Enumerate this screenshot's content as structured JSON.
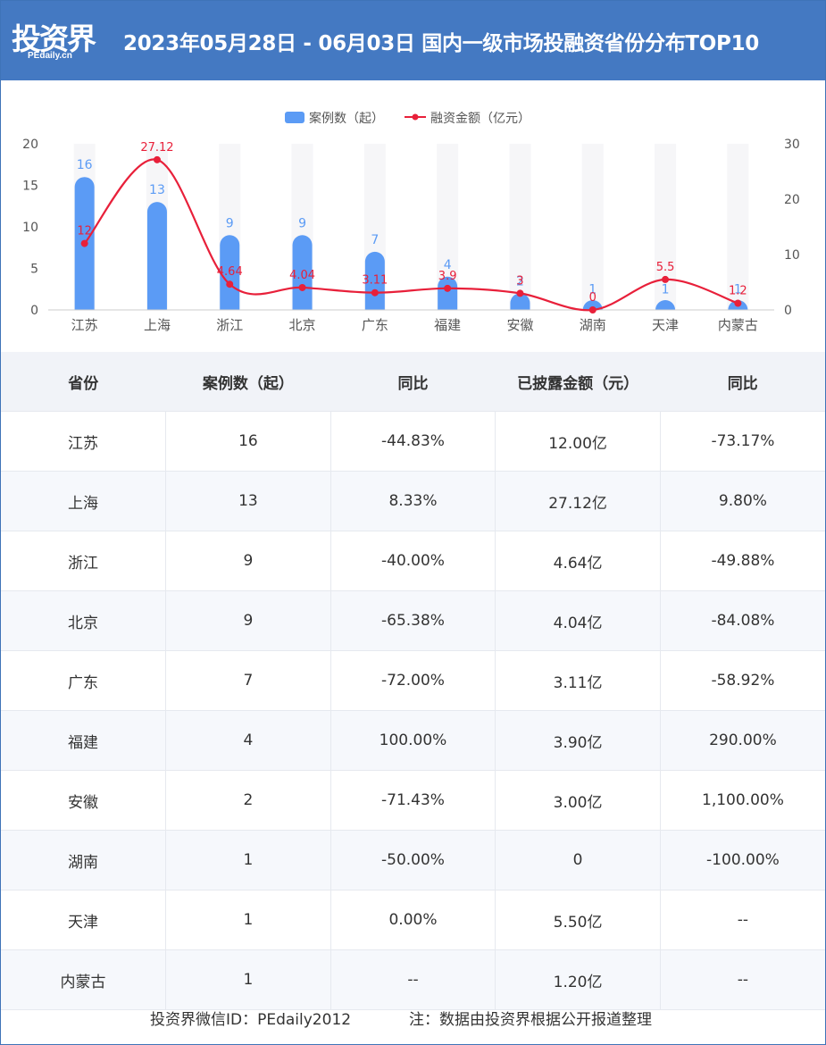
{
  "header": {
    "logo_text": "投资界",
    "logo_sub": "PEdaily.cn",
    "title": "2023年05月28日 - 06月03日 国内一级市场投融资省份分布TOP10"
  },
  "colors": {
    "header_bg": "#4479c2",
    "bar": "#5b9bf5",
    "line": "#e8203a"
  },
  "chart_data": {
    "type": "bar",
    "categories": [
      "江苏",
      "上海",
      "浙江",
      "北京",
      "广东",
      "福建",
      "安徽",
      "湖南",
      "天津",
      "内蒙古"
    ],
    "series": [
      {
        "name": "案例数（起）",
        "type": "bar",
        "axis": "left",
        "values": [
          16,
          13,
          9,
          9,
          7,
          4,
          2,
          1,
          1,
          1
        ],
        "labels": [
          "16",
          "13",
          "9",
          "9",
          "7",
          "4",
          "2",
          "1",
          "1",
          "1"
        ]
      },
      {
        "name": "融资金额（亿元）",
        "type": "line",
        "axis": "right",
        "values": [
          12,
          27.12,
          4.64,
          4.04,
          3.11,
          3.9,
          3,
          0,
          5.5,
          1.2
        ],
        "labels": [
          "12",
          "27.12",
          "4.64",
          "4.04",
          "3.11",
          "3.9",
          "3",
          "0",
          "5.5",
          "1.2"
        ]
      }
    ],
    "y_left": {
      "range": [
        0,
        20
      ],
      "ticks": [
        "0",
        "5",
        "10",
        "15",
        "20"
      ]
    },
    "y_right": {
      "range": [
        0,
        30
      ],
      "ticks": [
        "0",
        "10",
        "20",
        "30"
      ]
    },
    "legend_position": "top-center",
    "grid": false
  },
  "table": {
    "headers": [
      "省份",
      "案例数（起）",
      "同比",
      "已披露金额（元）",
      "同比"
    ],
    "rows": [
      [
        "江苏",
        "16",
        "-44.83%",
        "12.00亿",
        "-73.17%"
      ],
      [
        "上海",
        "13",
        "8.33%",
        "27.12亿",
        "9.80%"
      ],
      [
        "浙江",
        "9",
        "-40.00%",
        "4.64亿",
        "-49.88%"
      ],
      [
        "北京",
        "9",
        "-65.38%",
        "4.04亿",
        "-84.08%"
      ],
      [
        "广东",
        "7",
        "-72.00%",
        "3.11亿",
        "-58.92%"
      ],
      [
        "福建",
        "4",
        "100.00%",
        "3.90亿",
        "290.00%"
      ],
      [
        "安徽",
        "2",
        "-71.43%",
        "3.00亿",
        "1,100.00%"
      ],
      [
        "湖南",
        "1",
        "-50.00%",
        "0",
        "-100.00%"
      ],
      [
        "天津",
        "1",
        "0.00%",
        "5.50亿",
        "--"
      ],
      [
        "内蒙古",
        "1",
        "--",
        "1.20亿",
        "--"
      ]
    ]
  },
  "footer": {
    "wechat": "投资界微信ID：PEdaily2012",
    "note": "注：数据由投资界根据公开报道整理"
  }
}
